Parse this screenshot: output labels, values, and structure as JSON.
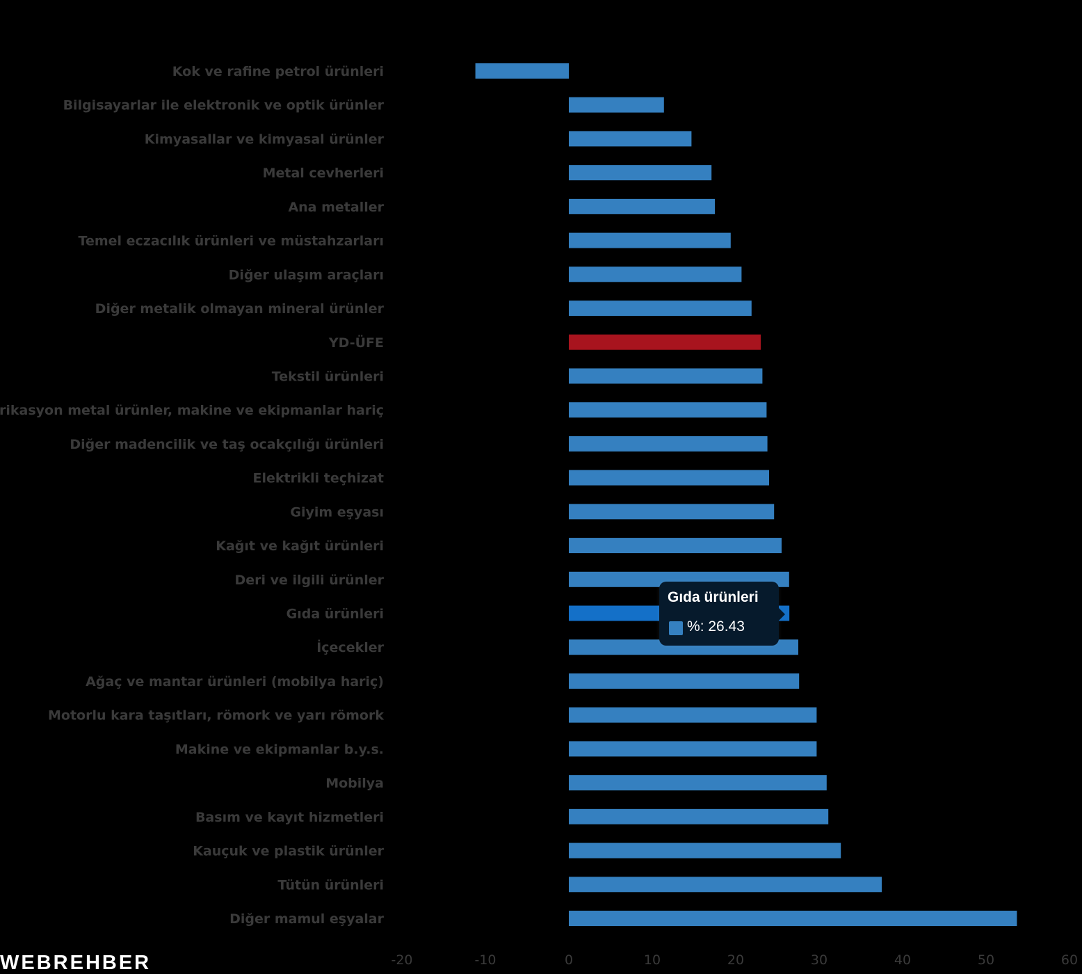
{
  "chart_data": {
    "type": "bar",
    "orientation": "horizontal",
    "categories": [
      "Kok ve rafine petrol ürünleri",
      "Bilgisayarlar ile elektronik ve optik ürünler",
      "Kimyasallar ve kimyasal ürünler",
      "Metal cevherleri",
      "Ana metaller",
      "Temel eczacılık ürünleri ve müstahzarları",
      "Diğer ulaşım araçları",
      "Diğer metalik olmayan mineral ürünler",
      "YD-ÜFE",
      "Tekstil ürünleri",
      "Fabrikasyon metal ürünler, makine ve ekipmanlar hariç",
      "Diğer madencilik ve taş ocakçılığı ürünleri",
      "Elektrikli teçhizat",
      "Giyim eşyası",
      "Kağıt ve kağıt ürünleri",
      "Deri ve ilgili ürünler",
      "Gıda ürünleri",
      "İçecekler",
      "Ağaç ve mantar ürünleri (mobilya hariç)",
      "Motorlu kara taşıtları, römork ve yarı römork",
      "Makine ve ekipmanlar b.y.s.",
      "Mobilya",
      "Basım ve kayıt hizmetleri",
      "Kauçuk ve plastik ürünler",
      "Tütün ürünleri",
      "Diğer mamul eşyalar"
    ],
    "values": [
      -11.2,
      11.4,
      14.7,
      17.1,
      17.5,
      19.4,
      20.7,
      21.9,
      23.0,
      23.2,
      23.7,
      23.8,
      24.0,
      24.6,
      25.5,
      26.4,
      26.43,
      27.5,
      27.6,
      29.7,
      29.7,
      30.9,
      31.1,
      32.6,
      37.5,
      53.7
    ],
    "bar_colors": {
      "default": "#3580c0",
      "highlight": "#a8141e",
      "hover": "#1470c8"
    },
    "highlight_index": 8,
    "hover_index": 16,
    "xlim": [
      -20,
      60
    ],
    "x_ticks": [
      "-20",
      "-10",
      "0",
      "10",
      "20",
      "30",
      "40",
      "50",
      "60"
    ],
    "title": "",
    "xlabel": "",
    "ylabel": "",
    "grid": false,
    "legend": "none"
  },
  "tooltip": {
    "title": "Gıda ürünleri",
    "series_label": "%",
    "value": "26.43",
    "swatch_color": "#3580c0"
  },
  "logo": {
    "text": "WEBREHBER"
  }
}
